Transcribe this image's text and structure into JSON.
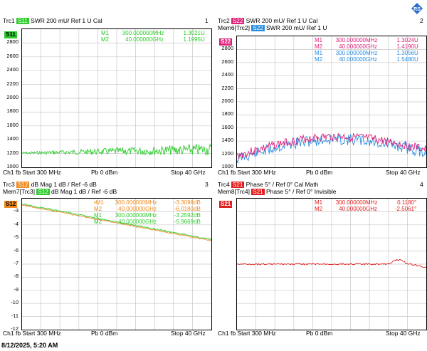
{
  "logo": "rohde-schwarz-logo",
  "timestamp": "8/12/2025, 5:20 AM",
  "panes": [
    {
      "id": "p1",
      "num": "1",
      "hdr": [
        {
          "trc": "Trc1",
          "badge": "S11",
          "badge_color": "#2ecc2e",
          "text": "SWR  200 mU/  Ref 1 U     Cal"
        }
      ],
      "trace_label": "S11",
      "trace_label_color": "#2ecc2e",
      "yticks": [
        "2800",
        "2600",
        "2400",
        "2200",
        "2000",
        "1800",
        "1600",
        "1400",
        "1200",
        "1000"
      ],
      "markers": [
        {
          "m": "M1",
          "freq": "300.000000",
          "unit": "MHz",
          "val": "1.3021",
          "vunit": "U",
          "color": "#2ecc2e"
        },
        {
          "m": "M2",
          "freq": "40.000000",
          "unit": "GHz",
          "val": "1.1995",
          "vunit": "U",
          "color": "#2ecc2e"
        }
      ],
      "footer": {
        "left": "Ch1  fb  Start  300 MHz",
        "mid": "Pb   0 dBm",
        "right": "Stop  40 GHz"
      }
    },
    {
      "id": "p2",
      "num": "2",
      "hdr": [
        {
          "trc": "Trc2",
          "badge": "S22",
          "badge_color": "#e0207a",
          "text": "SWR  200 mU/  Ref 1 U     Cal"
        },
        {
          "trc": "Mem6[Trc2]",
          "badge": "S22",
          "badge_color": "#2a8fe0",
          "text": "SWR  200 mU/  Ref 1 U"
        }
      ],
      "trace_label": "S22",
      "trace_label_color": "#e0207a",
      "yticks": [
        "2800",
        "2600",
        "2400",
        "2200",
        "2000",
        "1800",
        "1600",
        "1400",
        "1200",
        "1000"
      ],
      "markers": [
        {
          "m": "M1",
          "freq": "300.000000",
          "unit": "MHz",
          "val": "1.3024",
          "vunit": "U",
          "color": "#e0207a"
        },
        {
          "m": "M2",
          "freq": "40.000000",
          "unit": "GHz",
          "val": "1.4190",
          "vunit": "U",
          "color": "#e0207a"
        },
        {
          "m": "M1",
          "freq": "300.000000",
          "unit": "MHz",
          "val": "1.3056",
          "vunit": "U",
          "color": "#2a8fe0"
        },
        {
          "m": "M2",
          "freq": "40.000000",
          "unit": "GHz",
          "val": "1.5480",
          "vunit": "U",
          "color": "#2a8fe0"
        }
      ],
      "footer": {
        "left": "Ch1  fb  Start  300 MHz",
        "mid": "Pb   0 dBm",
        "right": "Stop  40 GHz"
      }
    },
    {
      "id": "p3",
      "num": "3",
      "hdr": [
        {
          "trc": "Trc3",
          "badge": "S12",
          "badge_color": "#f08a20",
          "text": "dB Mag  1 dB /  Ref -6 dB"
        },
        {
          "trc": "Mem7[Trc3]",
          "badge": "S12",
          "badge_color": "#2ecc2e",
          "text": "dB Mag  1 dB /  Ref -6 dB"
        }
      ],
      "trace_label": "S12",
      "trace_label_color": "#f08a20",
      "yticks": [
        "-3",
        "-4",
        "-5",
        "-6",
        "-7",
        "-8",
        "-9",
        "-10",
        "-11",
        "-12"
      ],
      "markers": [
        {
          "m": "•M1",
          "freq": "300.000000",
          "unit": "MHz",
          "val": "-3.3098",
          "vunit": "dB",
          "color": "#f08a20"
        },
        {
          "m": "M2",
          "freq": "40.000000",
          "unit": "GHz",
          "val": "-6.0180",
          "vunit": "dB",
          "color": "#f08a20"
        },
        {
          "m": "M1",
          "freq": "300.000000",
          "unit": "MHz",
          "val": "-3.2592",
          "vunit": "dB",
          "color": "#2ecc2e"
        },
        {
          "m": "M2",
          "freq": "40.000000",
          "unit": "GHz",
          "val": "-5.9669",
          "vunit": "dB",
          "color": "#2ecc2e"
        }
      ],
      "footer": {
        "left": "Ch1  fb  Start  300 MHz",
        "mid": "Pb   0 dBm",
        "right": "Stop  40 GHz"
      }
    },
    {
      "id": "p4",
      "num": "4",
      "hdr": [
        {
          "trc": "Trc4",
          "badge": "S21",
          "badge_color": "#e02020",
          "text": "Phase  5° /  Ref 0°     Cal Math"
        },
        {
          "trc": "Mem8[Trc4]",
          "badge": "S21",
          "badge_color": "#e02020",
          "text": "Phase  5° /  Ref 0°     Invisible"
        }
      ],
      "trace_label": "S21",
      "trace_label_color": "#e02020",
      "yticks": [
        "",
        "",
        "",
        "",
        "",
        "",
        "",
        "",
        "",
        ""
      ],
      "markers": [
        {
          "m": "M1",
          "freq": "300.000000",
          "unit": "MHz",
          "val": "0.1180",
          "vunit": "°",
          "color": "#e02020"
        },
        {
          "m": "M2",
          "freq": "40.000000",
          "unit": "GHz",
          "val": "-2.5061",
          "vunit": "°",
          "color": "#e02020"
        }
      ],
      "footer": {
        "left": "Ch1  fb  Start  300 MHz",
        "mid": "Pb   0 dBm",
        "right": "Stop  40 GHz"
      }
    }
  ]
}
